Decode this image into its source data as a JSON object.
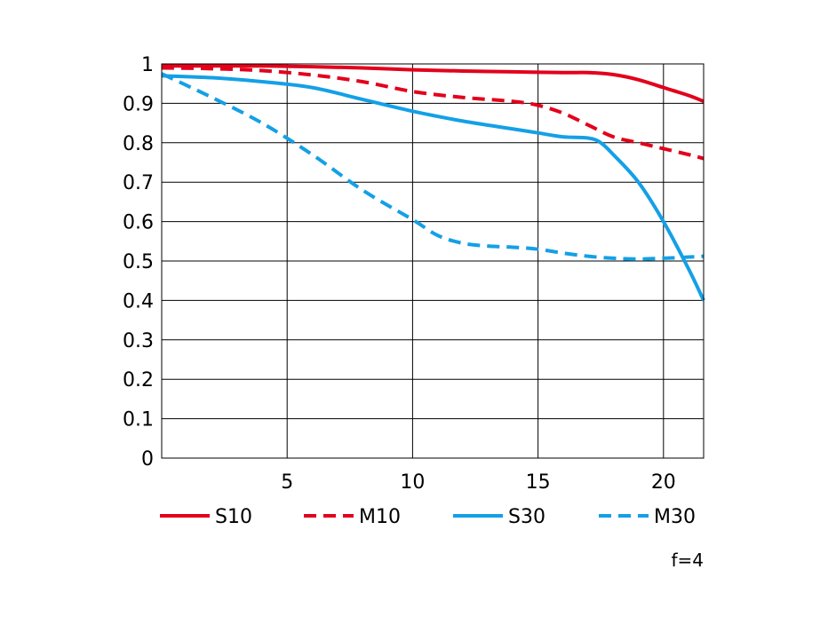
{
  "chart_data": {
    "type": "line",
    "title": "",
    "xlabel": "",
    "ylabel": "",
    "xlim": [
      0,
      21.6
    ],
    "ylim": [
      0,
      1
    ],
    "x_ticks": [
      5,
      10,
      15,
      20
    ],
    "x_tick_labels": [
      "5",
      "10",
      "15",
      "20"
    ],
    "y_ticks": [
      0,
      0.1,
      0.2,
      0.3,
      0.4,
      0.5,
      0.6,
      0.7,
      0.8,
      0.9,
      1
    ],
    "y_tick_labels": [
      "0",
      "0.1",
      "0.2",
      "0.3",
      "0.4",
      "0.5",
      "0.6",
      "0.7",
      "0.8",
      "0.9",
      "1"
    ],
    "grid": true,
    "legend_position": "bottom",
    "annotation": "f=4",
    "series": [
      {
        "name": "S10",
        "color": "#e3001b",
        "dash": "solid",
        "x": [
          0,
          2,
          4,
          6,
          8,
          10,
          12,
          14,
          16,
          17,
          18,
          19,
          20,
          21,
          21.6
        ],
        "y": [
          0.995,
          0.995,
          0.995,
          0.993,
          0.99,
          0.985,
          0.982,
          0.98,
          0.978,
          0.978,
          0.973,
          0.96,
          0.94,
          0.92,
          0.905
        ]
      },
      {
        "name": "M10",
        "color": "#e3001b",
        "dash": "dashed",
        "x": [
          0,
          2,
          4,
          6,
          8,
          10,
          12,
          14,
          15,
          16,
          17,
          18,
          19,
          20,
          21,
          21.6
        ],
        "y": [
          0.99,
          0.988,
          0.983,
          0.972,
          0.955,
          0.93,
          0.915,
          0.905,
          0.895,
          0.875,
          0.845,
          0.815,
          0.8,
          0.785,
          0.77,
          0.76
        ]
      },
      {
        "name": "S30",
        "color": "#14a0e6",
        "dash": "solid",
        "x": [
          0,
          2,
          4,
          6,
          8,
          10,
          12,
          14,
          15,
          16,
          17,
          17.5,
          18,
          19,
          20,
          21,
          21.6
        ],
        "y": [
          0.97,
          0.965,
          0.955,
          0.94,
          0.91,
          0.88,
          0.855,
          0.835,
          0.825,
          0.815,
          0.812,
          0.8,
          0.77,
          0.7,
          0.6,
          0.48,
          0.4
        ]
      },
      {
        "name": "M30",
        "color": "#14a0e6",
        "dash": "dashed",
        "x": [
          0,
          2,
          4,
          6,
          8,
          10,
          11,
          12,
          13,
          14,
          15,
          16,
          17,
          18,
          19,
          20,
          21,
          21.6
        ],
        "y": [
          0.975,
          0.915,
          0.85,
          0.77,
          0.68,
          0.605,
          0.565,
          0.545,
          0.538,
          0.535,
          0.53,
          0.52,
          0.512,
          0.507,
          0.505,
          0.507,
          0.51,
          0.512
        ]
      }
    ]
  }
}
